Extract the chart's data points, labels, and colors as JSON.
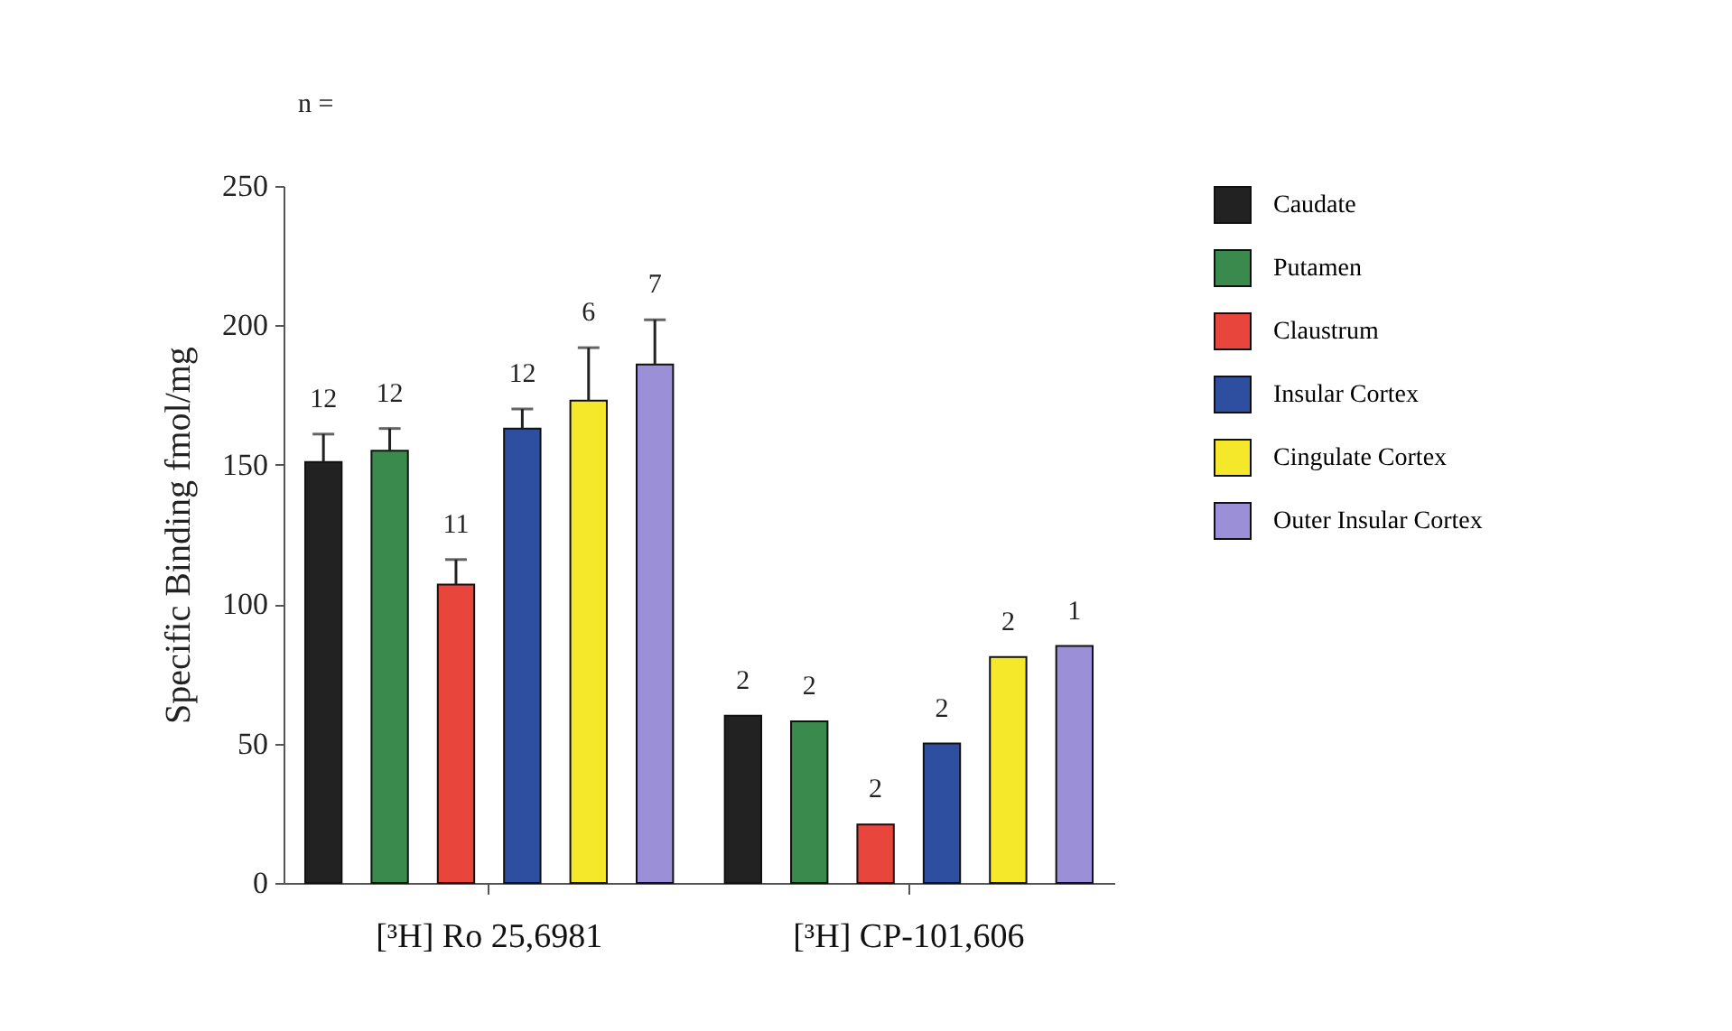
{
  "chart_data": {
    "type": "bar",
    "ylabel": "Specific Binding fmol/mg",
    "categories": [
      "[³H] Ro 25,6981",
      "[³H] CP-101,606"
    ],
    "series": [
      {
        "name": "Caudate",
        "color": "#222222",
        "values": [
          151,
          60
        ],
        "errors": [
          [
            151,
            161
          ],
          null
        ]
      },
      {
        "name": "Putamen",
        "color": "#3a8a4e",
        "values": [
          155,
          58
        ],
        "errors": [
          [
            155,
            163
          ],
          null
        ]
      },
      {
        "name": "Claustrum",
        "color": "#e8453c",
        "values": [
          107,
          21
        ],
        "errors": [
          [
            107,
            116
          ],
          null
        ]
      },
      {
        "name": "Insular Cortex",
        "color": "#2e4fa0",
        "values": [
          163,
          50
        ],
        "errors": [
          [
            163,
            170
          ],
          null
        ]
      },
      {
        "name": "Cingulate Cortex",
        "color": "#f5e72a",
        "values": [
          173,
          81
        ],
        "errors": [
          [
            173,
            192
          ],
          null
        ]
      },
      {
        "name": "Outer Insular Cortex",
        "color": "#9b8fd8",
        "values": [
          186,
          85
        ],
        "errors": [
          [
            186,
            202
          ],
          null
        ]
      }
    ],
    "ylim": [
      0,
      250
    ],
    "yticks": [
      0,
      50,
      100,
      150,
      200,
      250
    ],
    "annotations": [
      "n =",
      "12",
      "12",
      "11",
      "12",
      "6",
      "7",
      "2",
      "2",
      "2",
      "2",
      "2",
      "1"
    ],
    "legend": "top right"
  }
}
